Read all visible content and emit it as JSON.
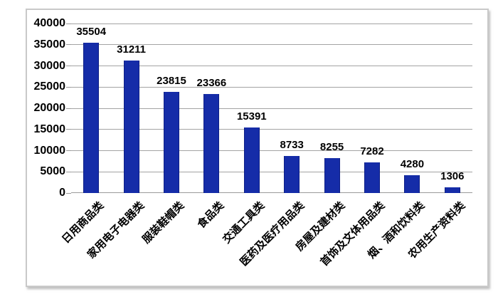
{
  "chart_data": {
    "type": "bar",
    "title": "",
    "xlabel": "",
    "ylabel": "",
    "categories": [
      "日用商品类",
      "家用电子电器类",
      "服装鞋帽类",
      "食品类",
      "交通工具类",
      "医药及医疗用品类",
      "房屋及建材类",
      "首饰及文体用品类",
      "烟、酒和饮料类",
      "农用生产资料类"
    ],
    "values": [
      35504,
      31211,
      23815,
      23366,
      15391,
      8733,
      8255,
      7282,
      4280,
      1306
    ],
    "value_labels": [
      "35504",
      "31211",
      "23815",
      "23366",
      "15391",
      "8733",
      "8255",
      "7282",
      "4280",
      "1306"
    ],
    "ylim": [
      0,
      40000
    ],
    "yticks": [
      0,
      5000,
      10000,
      15000,
      20000,
      25000,
      30000,
      35000,
      40000
    ],
    "ytick_labels": [
      "0",
      "5000",
      "10000",
      "15000",
      "20000",
      "25000",
      "30000",
      "35000",
      "40000"
    ],
    "grid": true,
    "legend": "none",
    "data_labels": true,
    "category_label_rotation_deg": -45,
    "colors": {
      "bar": "#152CA8",
      "bar_edge": "#0e1f86",
      "gridline": "#a3a3a3",
      "axis": "#9a9a9a",
      "frame_border": "#c9c9c9",
      "text": "#000000",
      "background": "#ffffff"
    }
  }
}
